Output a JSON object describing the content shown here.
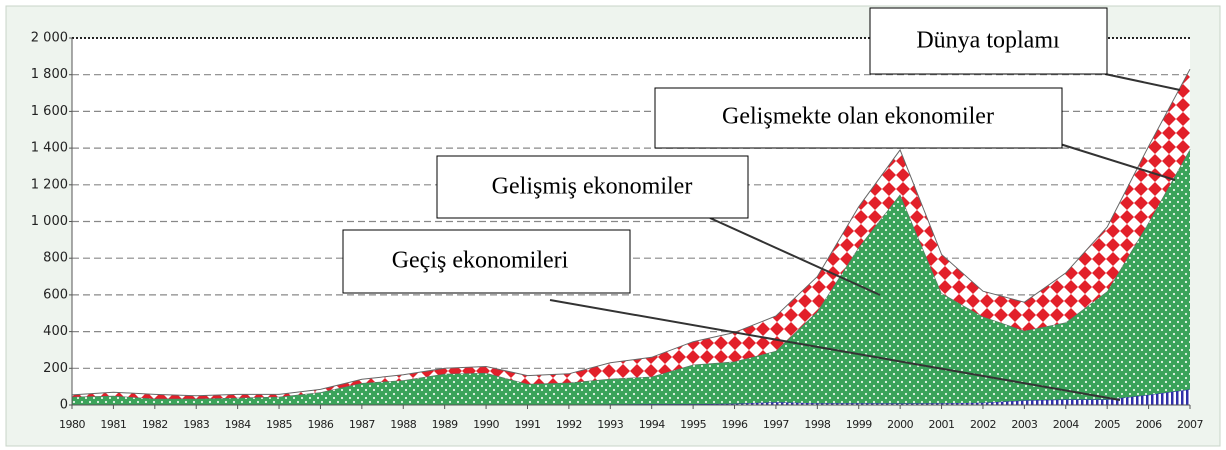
{
  "chart_data": {
    "type": "area",
    "categories": [
      "1980",
      "1981",
      "1982",
      "1983",
      "1984",
      "1985",
      "1986",
      "1987",
      "1988",
      "1989",
      "1990",
      "1991",
      "1992",
      "1993",
      "1994",
      "1995",
      "1996",
      "1997",
      "1998",
      "1999",
      "2000",
      "2001",
      "2002",
      "2003",
      "2004",
      "2005",
      "2006",
      "2007"
    ],
    "series": [
      {
        "name": "Geçiş ekonomileri",
        "color": "#2f2fa8",
        "values": [
          0,
          0,
          0,
          0,
          0,
          0,
          0,
          0,
          0,
          0,
          0,
          0,
          2,
          3,
          5,
          5,
          7,
          15,
          10,
          10,
          8,
          10,
          12,
          25,
          30,
          30,
          55,
          85
        ]
      },
      {
        "name": "Gelişmiş ekonomiler",
        "color": "#3aa35a",
        "values": [
          45,
          50,
          35,
          35,
          40,
          45,
          70,
          120,
          135,
          170,
          175,
          115,
          120,
          140,
          150,
          215,
          230,
          280,
          500,
          850,
          1140,
          600,
          470,
          380,
          420,
          590,
          940,
          1310
        ]
      },
      {
        "name": "Gelişmekte olan ekonomiler",
        "color": "#e2202a",
        "values": [
          10,
          20,
          23,
          15,
          18,
          13,
          15,
          20,
          30,
          30,
          35,
          45,
          48,
          87,
          105,
          125,
          158,
          190,
          190,
          220,
          242,
          210,
          138,
          155,
          270,
          350,
          415,
          435
        ]
      }
    ],
    "total_label": "Dünya toplamı",
    "stacked": true,
    "ylim": [
      0,
      2000
    ],
    "yticks": [
      0,
      200,
      400,
      600,
      800,
      {
        "value": 1000,
        "label": "1 000"
      },
      {
        "value": 1200,
        "label": "1 200"
      },
      {
        "value": 1400,
        "label": "1 400"
      },
      {
        "value": 1600,
        "label": "1 600"
      },
      {
        "value": 1800,
        "label": "1 800"
      },
      {
        "value": 2000,
        "label": "2 000"
      }
    ],
    "grid": true
  }
}
